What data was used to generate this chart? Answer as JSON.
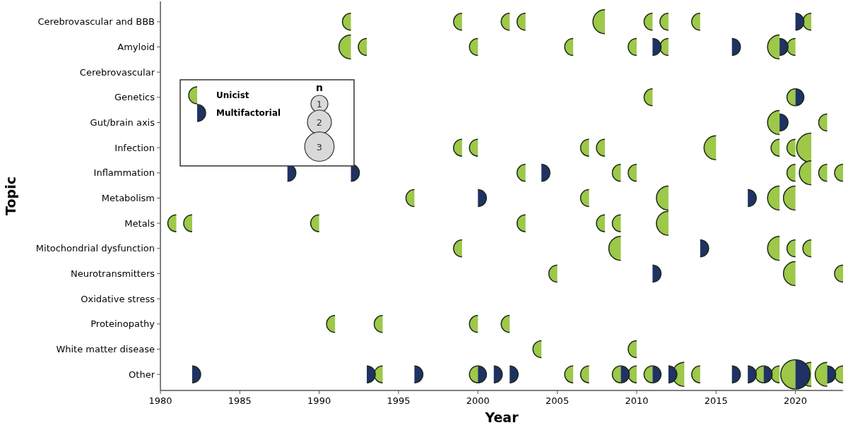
{
  "chart_data": {
    "type": "bubble",
    "xlabel": "Year",
    "ylabel": "Topic",
    "legend": "top left",
    "legend_title": "n",
    "size_legend": [
      1,
      2,
      3
    ],
    "xlim": [
      1980,
      2023
    ],
    "xticks": [
      1980,
      1985,
      1990,
      1995,
      2000,
      2005,
      2010,
      2015,
      2020
    ],
    "orientation": "horizontal",
    "categories": [
      "Cerebrovascular and BBB",
      "Amyloid",
      "Cerebrovascular",
      "Genetics",
      "Gut/brain axis",
      "Infection",
      "Inflammation",
      "Metabolism",
      "Metals",
      "Mitochondrial dysfunction",
      "Neurotransmitters",
      "Oxidative stress",
      "Proteinopathy",
      "White matter disease",
      "Other"
    ],
    "series": [
      {
        "name": "Unicist",
        "color": "#9dc84a",
        "values": [
          1992,
          1999,
          2002,
          2003,
          2008,
          2011,
          2012,
          2014,
          2021,
          1992,
          1993,
          2000,
          2006,
          2010,
          2012,
          2019,
          2020,
          2011,
          2020,
          2019,
          2022,
          1999,
          2000,
          2007,
          2008,
          2015,
          2019,
          2020,
          2021,
          2003,
          2009,
          2010,
          2020,
          2021,
          2022,
          2023,
          1996,
          2007,
          2012,
          2019,
          2020,
          1981,
          1982,
          1990,
          2003,
          2008,
          2009,
          2012,
          1999,
          2009,
          2019,
          2020,
          2021,
          2005,
          2020,
          2023,
          1991,
          1994,
          2000,
          2002,
          2004,
          2010,
          1994,
          2000,
          2006,
          2007,
          2009,
          2010,
          2011,
          2013,
          2014,
          2018,
          2019,
          2020,
          2021,
          2022,
          2023
        ],
        "x": [
          "Cerebrovascular and BBB",
          "Cerebrovascular and BBB",
          "Cerebrovascular and BBB",
          "Cerebrovascular and BBB",
          "Cerebrovascular and BBB",
          "Cerebrovascular and BBB",
          "Cerebrovascular and BBB",
          "Cerebrovascular and BBB",
          "Cerebrovascular and BBB",
          "Amyloid",
          "Amyloid",
          "Amyloid",
          "Amyloid",
          "Amyloid",
          "Amyloid",
          "Amyloid",
          "Amyloid",
          "Genetics",
          "Genetics",
          "Gut/brain axis",
          "Gut/brain axis",
          "Infection",
          "Infection",
          "Infection",
          "Infection",
          "Infection",
          "Infection",
          "Infection",
          "Infection",
          "Inflammation",
          "Inflammation",
          "Inflammation",
          "Inflammation",
          "Inflammation",
          "Inflammation",
          "Inflammation",
          "Metabolism",
          "Metabolism",
          "Metabolism",
          "Metabolism",
          "Metabolism",
          "Metals",
          "Metals",
          "Metals",
          "Metals",
          "Metals",
          "Metals",
          "Metals",
          "Mitochondrial dysfunction",
          "Mitochondrial dysfunction",
          "Mitochondrial dysfunction",
          "Mitochondrial dysfunction",
          "Mitochondrial dysfunction",
          "Neurotransmitters",
          "Neurotransmitters",
          "Neurotransmitters",
          "Proteinopathy",
          "Proteinopathy",
          "Proteinopathy",
          "Proteinopathy",
          "White matter disease",
          "White matter disease",
          "Other",
          "Other",
          "Other",
          "Other",
          "Other",
          "Other",
          "Other",
          "Other",
          "Other",
          "Other",
          "Other",
          "Other",
          "Other",
          "Other",
          "Other"
        ],
        "sizes": [
          1,
          1,
          1,
          1,
          2,
          1,
          1,
          1,
          1,
          2,
          1,
          1,
          1,
          1,
          1,
          2,
          1,
          1,
          1,
          2,
          1,
          1,
          1,
          1,
          1,
          2,
          1,
          1,
          3,
          1,
          1,
          1,
          1,
          2,
          1,
          1,
          1,
          1,
          2,
          2,
          2,
          1,
          1,
          1,
          1,
          1,
          1,
          2,
          1,
          2,
          2,
          1,
          1,
          1,
          2,
          1,
          1,
          1,
          1,
          1,
          1,
          1,
          1,
          1,
          1,
          1,
          1,
          1,
          1,
          2,
          1,
          1,
          1,
          3,
          2,
          2,
          1
        ]
      },
      {
        "name": "Multifactorial",
        "color": "#1f3263",
        "values": [
          2020,
          2011,
          2016,
          2019,
          2020,
          2019,
          1988,
          1992,
          2004,
          2000,
          2017,
          2014,
          2011,
          1982,
          1993,
          1996,
          2000,
          2001,
          2002,
          2009,
          2011,
          2012,
          2016,
          2017,
          2018,
          2020,
          2022
        ],
        "x": [
          "Cerebrovascular and BBB",
          "Amyloid",
          "Amyloid",
          "Amyloid",
          "Genetics",
          "Gut/brain axis",
          "Inflammation",
          "Inflammation",
          "Inflammation",
          "Metabolism",
          "Metabolism",
          "Mitochondrial dysfunction",
          "Neurotransmitters",
          "Other",
          "Other",
          "Other",
          "Other",
          "Other",
          "Other",
          "Other",
          "Other",
          "Other",
          "Other",
          "Other",
          "Other",
          "Other",
          "Other"
        ],
        "sizes": [
          1,
          1,
          1,
          1,
          1,
          1,
          1,
          1,
          1,
          1,
          1,
          1,
          1,
          1,
          1,
          1,
          1,
          1,
          1,
          1,
          1,
          1,
          1,
          1,
          1,
          3,
          1
        ]
      }
    ]
  }
}
